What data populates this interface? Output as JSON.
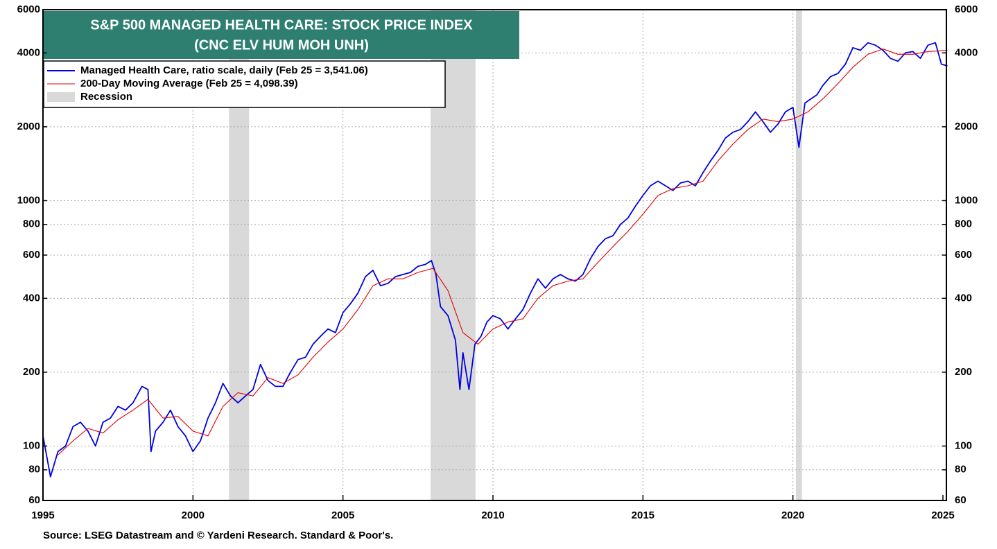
{
  "chart_data": {
    "type": "line",
    "title": "S&P 500 MANAGED HEALTH CARE: STOCK PRICE INDEX",
    "subtitle": "(CNC ELV HUM MOH UNH)",
    "source": "Source: LSEG Datastream and © Yardeni Research. Standard & Poor's.",
    "log_scale": true,
    "grid": true,
    "legend": "upper left",
    "xlim": [
      1995,
      2025
    ],
    "xticks": [
      1995,
      2000,
      2005,
      2010,
      2015,
      2020,
      2025
    ],
    "ylim": [
      60,
      6000
    ],
    "yticks": [
      60,
      80,
      100,
      200,
      400,
      600,
      800,
      1000,
      2000,
      4000,
      6000
    ],
    "y2lim": [
      60,
      6000
    ],
    "y2ticks": [
      60,
      80,
      100,
      200,
      400,
      600,
      800,
      1000,
      2000,
      4000,
      6000
    ],
    "bands": {
      "name": "Recession",
      "color": "#d9d9d9",
      "ranges": [
        [
          2001.2,
          2001.87
        ],
        [
          2007.92,
          2009.42
        ],
        [
          2020.1,
          2020.3
        ]
      ]
    },
    "series": [
      {
        "name": "Managed Health Care, ratio scale, daily (Feb 25 = 3,541.06)",
        "color": "#0000e0",
        "x": [
          1995.0,
          1995.25,
          1995.5,
          1995.75,
          1996.0,
          1996.25,
          1996.5,
          1996.75,
          1997.0,
          1997.25,
          1997.5,
          1997.75,
          1998.0,
          1998.3,
          1998.5,
          1998.6,
          1998.75,
          1999.0,
          1999.25,
          1999.5,
          1999.75,
          2000.0,
          2000.25,
          2000.5,
          2000.75,
          2001.0,
          2001.25,
          2001.5,
          2001.75,
          2002.0,
          2002.25,
          2002.5,
          2002.75,
          2003.0,
          2003.25,
          2003.5,
          2003.75,
          2004.0,
          2004.25,
          2004.5,
          2004.75,
          2005.0,
          2005.25,
          2005.5,
          2005.75,
          2006.0,
          2006.25,
          2006.5,
          2006.75,
          2007.0,
          2007.25,
          2007.5,
          2007.75,
          2007.95,
          2008.1,
          2008.25,
          2008.5,
          2008.75,
          2008.9,
          2009.0,
          2009.2,
          2009.4,
          2009.6,
          2009.8,
          2010.0,
          2010.25,
          2010.5,
          2010.75,
          2011.0,
          2011.25,
          2011.5,
          2011.75,
          2012.0,
          2012.25,
          2012.5,
          2012.75,
          2013.0,
          2013.25,
          2013.5,
          2013.75,
          2014.0,
          2014.25,
          2014.5,
          2014.75,
          2015.0,
          2015.25,
          2015.5,
          2015.75,
          2016.0,
          2016.25,
          2016.5,
          2016.75,
          2017.0,
          2017.25,
          2017.5,
          2017.75,
          2018.0,
          2018.25,
          2018.5,
          2018.75,
          2019.0,
          2019.25,
          2019.5,
          2019.75,
          2020.0,
          2020.2,
          2020.4,
          2020.6,
          2020.8,
          2021.0,
          2021.25,
          2021.5,
          2021.75,
          2022.0,
          2022.25,
          2022.5,
          2022.75,
          2023.0,
          2023.25,
          2023.5,
          2023.75,
          2024.0,
          2024.25,
          2024.5,
          2024.75,
          2024.95,
          2025.15
        ],
        "values": [
          110,
          75,
          95,
          100,
          120,
          125,
          115,
          100,
          125,
          130,
          145,
          140,
          150,
          175,
          170,
          95,
          115,
          125,
          140,
          120,
          110,
          95,
          105,
          130,
          150,
          180,
          160,
          150,
          160,
          170,
          215,
          185,
          175,
          175,
          200,
          225,
          230,
          260,
          280,
          300,
          290,
          350,
          380,
          420,
          490,
          520,
          450,
          460,
          490,
          500,
          510,
          540,
          550,
          570,
          500,
          370,
          340,
          270,
          170,
          240,
          170,
          260,
          280,
          320,
          340,
          330,
          300,
          330,
          360,
          420,
          480,
          440,
          480,
          500,
          480,
          470,
          500,
          580,
          650,
          700,
          720,
          800,
          850,
          950,
          1050,
          1150,
          1200,
          1150,
          1100,
          1180,
          1200,
          1150,
          1300,
          1450,
          1600,
          1800,
          1900,
          1950,
          2100,
          2300,
          2100,
          1900,
          2050,
          2300,
          2400,
          1650,
          2500,
          2600,
          2700,
          2950,
          3200,
          3300,
          3600,
          4200,
          4100,
          4400,
          4300,
          4100,
          3800,
          3700,
          4000,
          4050,
          3800,
          4300,
          4400,
          3600,
          3541.06
        ]
      },
      {
        "name": "200-Day Moving Average (Feb 25 = 4,098.39)",
        "color": "#e00000",
        "x": [
          1995.5,
          1996.0,
          1996.5,
          1997.0,
          1997.5,
          1998.0,
          1998.5,
          1999.0,
          1999.5,
          2000.0,
          2000.5,
          2001.0,
          2001.5,
          2002.0,
          2002.5,
          2003.0,
          2003.5,
          2004.0,
          2004.5,
          2005.0,
          2005.5,
          2006.0,
          2006.5,
          2007.0,
          2007.5,
          2008.0,
          2008.5,
          2009.0,
          2009.5,
          2010.0,
          2010.5,
          2011.0,
          2011.5,
          2012.0,
          2012.5,
          2013.0,
          2013.5,
          2014.0,
          2014.5,
          2015.0,
          2015.5,
          2016.0,
          2016.5,
          2017.0,
          2017.5,
          2018.0,
          2018.5,
          2019.0,
          2019.5,
          2020.0,
          2020.5,
          2021.0,
          2021.5,
          2022.0,
          2022.5,
          2023.0,
          2023.5,
          2024.0,
          2024.5,
          2025.15
        ],
        "values": [
          92,
          105,
          118,
          113,
          128,
          140,
          155,
          130,
          132,
          115,
          110,
          145,
          165,
          160,
          190,
          180,
          195,
          230,
          265,
          300,
          360,
          450,
          480,
          480,
          510,
          530,
          430,
          290,
          260,
          300,
          320,
          330,
          400,
          450,
          470,
          480,
          560,
          650,
          750,
          880,
          1050,
          1120,
          1150,
          1200,
          1450,
          1700,
          1950,
          2150,
          2100,
          2150,
          2300,
          2600,
          3000,
          3500,
          3950,
          4150,
          3950,
          3950,
          4050,
          4098.39
        ]
      }
    ]
  }
}
